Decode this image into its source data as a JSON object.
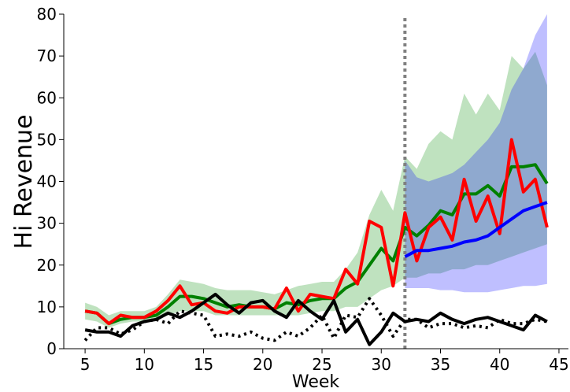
{
  "chart_data": {
    "type": "line",
    "xlabel": "Week",
    "ylabel": "Hi Revenue",
    "xlim": [
      3.2,
      45.8
    ],
    "ylim": [
      0,
      80
    ],
    "xticks": [
      5,
      10,
      15,
      20,
      25,
      30,
      35,
      40,
      45
    ],
    "yticks": [
      0,
      10,
      20,
      30,
      40,
      50,
      60,
      70,
      80
    ],
    "grid": false,
    "legend": "none",
    "vline": {
      "x": 32,
      "style": "dotted",
      "color": "#808080"
    },
    "bands": [
      {
        "color": "#2ca02c",
        "opacity": 0.3,
        "x": [
          5,
          6,
          7,
          8,
          9,
          10,
          11,
          12,
          13,
          14,
          15,
          16,
          17,
          18,
          19,
          20,
          21,
          22,
          23,
          24,
          25,
          26,
          27,
          28,
          29,
          30,
          31,
          32,
          33,
          34,
          35,
          36,
          37,
          38,
          39,
          40,
          41,
          42,
          43,
          44
        ],
        "lower": [
          7,
          6.5,
          5,
          6,
          6.5,
          6.5,
          7,
          8,
          9,
          9,
          9,
          8,
          8,
          8,
          8,
          8,
          8,
          8,
          8,
          8.5,
          9,
          9,
          10,
          10,
          12,
          14,
          15,
          17,
          17,
          18,
          18,
          19,
          19,
          20,
          20,
          21,
          22,
          23,
          24,
          25
        ],
        "upper": [
          11,
          10,
          8,
          9,
          9,
          9,
          10,
          13,
          16.5,
          16,
          15.5,
          14.5,
          14,
          14,
          14,
          13.5,
          13,
          14,
          15,
          15.5,
          16,
          16,
          19,
          23,
          32,
          38,
          33,
          46,
          43,
          49,
          52,
          50,
          61,
          56,
          61,
          57,
          70,
          67,
          71,
          63
        ]
      },
      {
        "color": "#0000ff",
        "opacity": 0.25,
        "x": [
          32,
          33,
          34,
          35,
          36,
          37,
          38,
          39,
          40,
          41,
          42,
          43,
          44
        ],
        "lower": [
          14.5,
          14.5,
          14.5,
          14,
          14,
          13.5,
          13.5,
          13.5,
          14,
          14.5,
          15,
          15,
          15.5
        ],
        "upper": [
          45,
          41,
          40,
          41,
          42,
          44,
          47,
          50,
          54,
          62,
          67,
          75,
          80
        ]
      }
    ],
    "series": [
      {
        "color": "#008000",
        "style": "solid",
        "x": [
          5,
          6,
          7,
          8,
          9,
          10,
          11,
          12,
          13,
          14,
          15,
          16,
          17,
          18,
          19,
          20,
          21,
          22,
          23,
          24,
          25,
          26,
          27,
          28,
          29,
          30,
          31,
          32,
          33,
          34,
          35,
          36,
          37,
          38,
          39,
          40,
          41,
          42,
          43,
          44
        ],
        "values": [
          9,
          8.5,
          6,
          7,
          7.5,
          7.5,
          8,
          10,
          12.5,
          12.5,
          12,
          11,
          10,
          10.5,
          10,
          10,
          9.5,
          11,
          10.5,
          11.5,
          12,
          12,
          14.5,
          16,
          20,
          24,
          21,
          29,
          27,
          29.5,
          33,
          32,
          37,
          37,
          39,
          36.5,
          43.5,
          43.5,
          44,
          39.5
        ]
      },
      {
        "color": "#ff0000",
        "style": "solid",
        "x": [
          5,
          6,
          7,
          8,
          9,
          10,
          11,
          12,
          13,
          14,
          15,
          16,
          17,
          18,
          19,
          20,
          21,
          22,
          23,
          24,
          25,
          26,
          27,
          28,
          29,
          30,
          31,
          32,
          33,
          34,
          35,
          36,
          37,
          38,
          39,
          40,
          41,
          42,
          43,
          44
        ],
        "values": [
          9,
          8.5,
          6,
          8,
          7.5,
          7.5,
          9,
          11.5,
          15,
          10.5,
          11,
          9,
          8.5,
          10,
          10,
          10,
          9.5,
          14.5,
          9,
          13,
          12.5,
          12,
          19,
          15.5,
          30.5,
          29,
          15,
          32.5,
          21,
          29,
          31.5,
          26,
          40.5,
          30.5,
          36.5,
          27.5,
          50,
          37.5,
          40.5,
          29
        ]
      },
      {
        "color": "#0000ff",
        "style": "solid",
        "x": [
          32,
          33,
          34,
          35,
          36,
          37,
          38,
          39,
          40,
          41,
          42,
          43,
          44
        ],
        "values": [
          22,
          23.5,
          23.5,
          24,
          24.5,
          25.5,
          26,
          27,
          29,
          31,
          33,
          34,
          35
        ]
      },
      {
        "color": "#000000",
        "style": "dotted",
        "x": [
          5,
          6,
          7,
          8,
          9,
          10,
          11,
          12,
          13,
          14,
          15,
          16,
          17,
          18,
          19,
          20,
          21,
          22,
          23,
          24,
          25,
          26,
          27,
          28,
          29,
          30,
          31,
          32,
          33,
          34,
          35,
          36,
          37,
          38,
          39,
          40,
          41,
          42,
          43,
          44
        ],
        "values": [
          2,
          5,
          5,
          3.5,
          4.5,
          6.5,
          7,
          6,
          9,
          8.5,
          8,
          3,
          3.5,
          3,
          4,
          2.5,
          2,
          4,
          3,
          5,
          8,
          2.5,
          8,
          7.5,
          12,
          8,
          3,
          7,
          7,
          5,
          6,
          6,
          5,
          5.5,
          5,
          7,
          6,
          6,
          7,
          6.5
        ]
      },
      {
        "color": "#000000",
        "style": "solid",
        "x": [
          5,
          6,
          7,
          8,
          9,
          10,
          11,
          12,
          13,
          14,
          15,
          16,
          17,
          18,
          19,
          20,
          21,
          22,
          23,
          24,
          25,
          26,
          27,
          28,
          29,
          30,
          31,
          32,
          33,
          34,
          35,
          36,
          37,
          38,
          39,
          40,
          41,
          42,
          43,
          44
        ],
        "values": [
          4.5,
          4,
          4,
          3,
          5.5,
          6.5,
          7,
          8.5,
          7.5,
          9,
          11,
          13,
          10.5,
          8.5,
          11,
          11.5,
          9,
          7.5,
          11.5,
          9,
          7,
          11.5,
          4,
          7,
          1,
          4,
          8.5,
          6.5,
          7,
          6.5,
          8.5,
          7,
          6,
          7,
          7.5,
          6.5,
          5.5,
          4.5,
          8,
          6.5
        ]
      }
    ]
  }
}
